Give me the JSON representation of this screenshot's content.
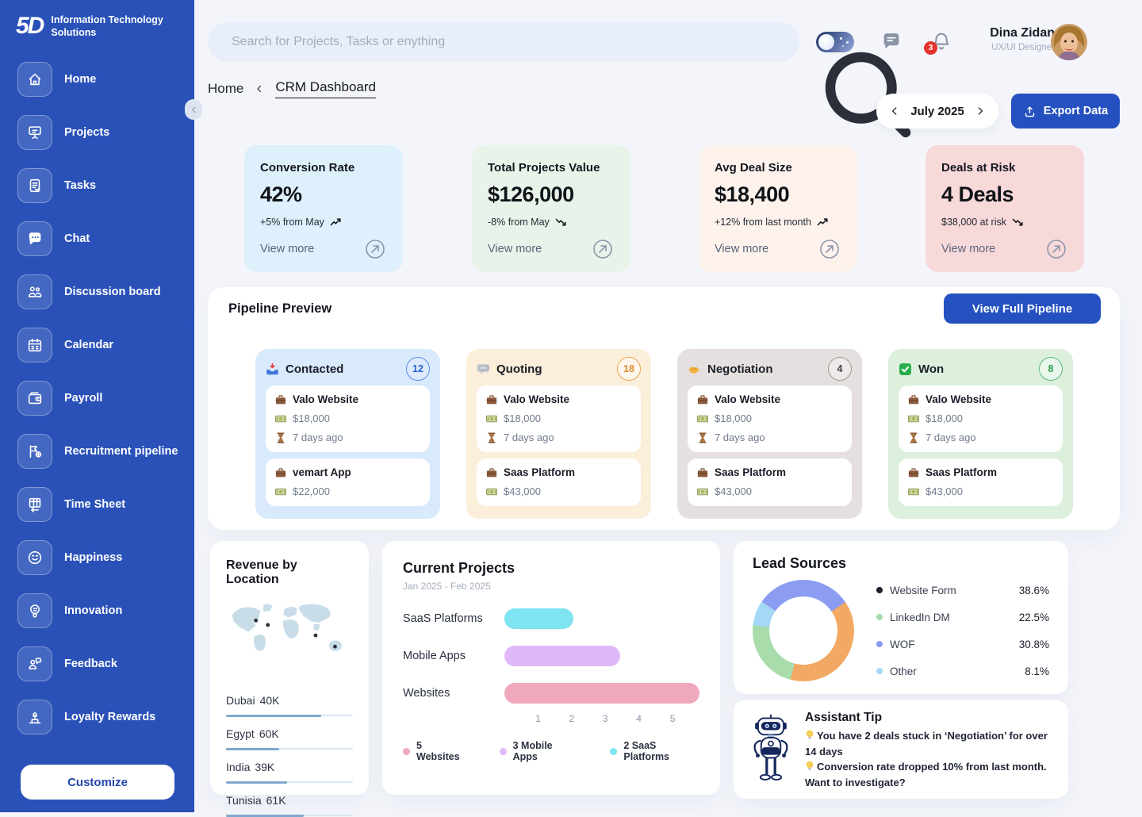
{
  "brand": {
    "logo_text": "5D",
    "line1": "Information Technology",
    "line2": "Solutions"
  },
  "sidebar": {
    "items": [
      {
        "icon": "home-icon",
        "label": "Home"
      },
      {
        "icon": "projects-icon",
        "label": "Projects"
      },
      {
        "icon": "tasks-icon",
        "label": "Tasks"
      },
      {
        "icon": "chat-icon",
        "label": "Chat"
      },
      {
        "icon": "discussion-board-icon",
        "label": "Discussion board"
      },
      {
        "icon": "calendar-icon",
        "label": "Calendar"
      },
      {
        "icon": "payroll-icon",
        "label": "Payroll"
      },
      {
        "icon": "recruitment-pipeline-icon",
        "label": "Recruitment pipeline"
      },
      {
        "icon": "time-sheet-icon",
        "label": "Time Sheet"
      },
      {
        "icon": "happiness-icon",
        "label": "Happiness"
      },
      {
        "icon": "innovation-icon",
        "label": "Innovation"
      },
      {
        "icon": "feedback-icon",
        "label": "Feedback"
      },
      {
        "icon": "loyalty-rewards-icon",
        "label": "Loyalty Rewards"
      }
    ],
    "customize_label": "Customize"
  },
  "topbar": {
    "search_placeholder": "Search for Projects, Tasks or enything",
    "notification_count": "3",
    "user": {
      "name": "Dina Zidan",
      "role": "UX/UI Designer"
    }
  },
  "breadcrumb": {
    "root": "Home",
    "current": "CRM Dashboard"
  },
  "controls": {
    "period": "July 2025",
    "export_label": "Export Data"
  },
  "stats": [
    {
      "title": "Conversion Rate",
      "value": "42%",
      "delta": "+5% from May",
      "trend": "up",
      "view_more": "View more",
      "bg": "#ddf0fb"
    },
    {
      "title": "Total Projects Value",
      "value": "$126,000",
      "delta": "-8% from May",
      "trend": "down",
      "view_more": "View more",
      "bg": "#e8f3e9"
    },
    {
      "title": "Avg Deal Size",
      "value": "$18,400",
      "delta": "+12% from last month",
      "trend": "up",
      "view_more": "View more",
      "bg": "#fdf3ec"
    },
    {
      "title": "Deals at Risk",
      "value": "4 Deals",
      "delta": "$38,000 at risk",
      "trend": "down",
      "view_more": "View more",
      "bg": "#f8d9da"
    }
  ],
  "pipeline": {
    "title": "Pipeline Preview",
    "button_label": "View Full Pipeline",
    "columns": [
      {
        "name": "Contacted",
        "count": "12",
        "icon": "inbox-tray-icon",
        "bg": "#d8eafc",
        "badge_bg": "#dceafc",
        "badge_border": "#5d8ee8",
        "badge_text": "#2563d6",
        "deals": [
          {
            "name": "Valo Website",
            "value": "$18,000",
            "age": "7 days ago"
          },
          {
            "name": "vemart App",
            "value": "$22,000"
          }
        ]
      },
      {
        "name": "Quoting",
        "count": "18",
        "icon": "speech-balloon-icon",
        "bg": "#fbeeda",
        "badge_bg": "#fdf7ee",
        "badge_border": "#eaa649",
        "badge_text": "#df8a2e",
        "deals": [
          {
            "name": "Valo Website",
            "value": "$18,000",
            "age": "7 days ago"
          },
          {
            "name": "Saas Platform",
            "value": "$43,000"
          }
        ]
      },
      {
        "name": "Negotiation",
        "count": "4",
        "icon": "handshake-icon",
        "bg": "#e5e0df",
        "badge_bg": "#efeae9",
        "badge_border": "#9b9894",
        "badge_text": "#3f3f3f",
        "deals": [
          {
            "name": "Valo Website",
            "value": "$18,000",
            "age": "7 days ago"
          },
          {
            "name": "Saas Platform",
            "value": "$43,000"
          }
        ]
      },
      {
        "name": "Won",
        "count": "8",
        "icon": "won-check-icon",
        "bg": "#dcf0dd",
        "badge_bg": "#eaf7ec",
        "badge_border": "#5cb878",
        "badge_text": "#2f9e4f",
        "deals": [
          {
            "name": "Valo Website",
            "value": "$18,000",
            "age": "7 days ago"
          },
          {
            "name": "Saas Platform",
            "value": "$43,000"
          }
        ]
      }
    ]
  },
  "revenue_by_location": {
    "title": "Revenue by Location",
    "locations": [
      {
        "name": "Dubai",
        "value": "40K",
        "pct": 75
      },
      {
        "name": "Egypt",
        "value": "60K",
        "pct": 42
      },
      {
        "name": "India",
        "value": "39K",
        "pct": 48
      },
      {
        "name": "Tunisia",
        "value": "61K",
        "pct": 61
      }
    ]
  },
  "assistant": {
    "title": "Assistant Tip",
    "tips": [
      "You have 2 deals stuck in ‘Negotiation’ for over 14 days",
      "Conversion rate dropped 10% from last month. Want to investigate?"
    ]
  },
  "chart_data": [
    {
      "id": "current_projects",
      "type": "bar",
      "orientation": "horizontal",
      "title": "Current Projects",
      "subtitle": "Jan 2025 - Feb 2025",
      "categories": [
        "SaaS Platforms",
        "Mobile Apps",
        "Websites"
      ],
      "values": [
        2.05,
        3.45,
        5.8
      ],
      "counts": [
        2,
        3,
        5
      ],
      "colors": [
        "#7fe3f2",
        "#dfb8f7",
        "#f0a8bc"
      ],
      "xticks": [
        1,
        2,
        3,
        4,
        5
      ],
      "xlim": [
        0,
        5.8
      ],
      "grid": false,
      "legend_position": "bottom",
      "legend": [
        {
          "label": "5 Websites",
          "color": "#f0a8bc"
        },
        {
          "label": "3 Mobile Apps",
          "color": "#dfb8f7"
        },
        {
          "label": "2 SaaS Platforms",
          "color": "#7fe3f2"
        }
      ]
    },
    {
      "id": "lead_sources",
      "type": "pie",
      "title": "Lead Sources",
      "labels": [
        "Website Form",
        "LinkedIn DM",
        "WOF",
        "Other"
      ],
      "values": [
        38.6,
        22.5,
        30.8,
        8.1
      ],
      "value_labels": [
        "38.6%",
        "22.5%",
        "30.8%",
        "8.1%"
      ],
      "legend_dot_colors": [
        "#1b1f2a",
        "#a8dcab",
        "#8c9cf0",
        "#a5d8f5"
      ],
      "segment_colors": {
        "Website Form": "#f2a963",
        "LinkedIn DM": "#a8dcab",
        "WOF": "#8c9cf0",
        "Other": "#a5d8f5"
      },
      "draw_order": [
        "WOF",
        "Website Form",
        "LinkedIn DM",
        "Other"
      ],
      "start_angle_deg": -55,
      "legend_position": "right"
    }
  ]
}
